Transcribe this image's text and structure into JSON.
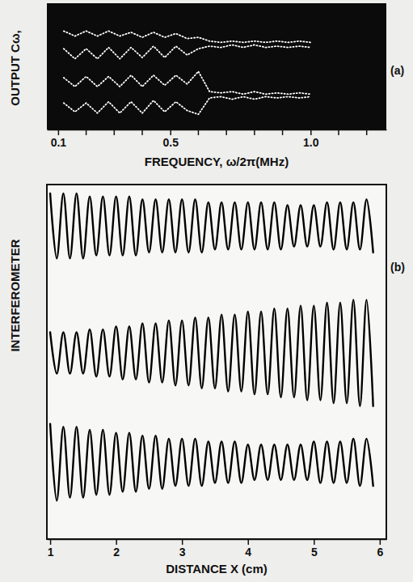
{
  "chart_data": [
    {
      "type": "line",
      "panel_label": "(a)",
      "xlabel": "FREQUENCY, ω/2π(MHz)",
      "ylabel": "OUTPUT Cω,",
      "xlim": [
        0.06,
        1.27
      ],
      "xticks": [
        0.1,
        0.5,
        {
          "value": 1,
          "label": "1.0"
        }
      ],
      "xminor_ticks": [
        0.2,
        0.3,
        0.4,
        0.6,
        0.7,
        0.8,
        0.9,
        1.1,
        1.2
      ],
      "ylim": [
        0,
        10
      ],
      "tick_labels": "x",
      "x": [
        0.12,
        0.16,
        0.2,
        0.24,
        0.28,
        0.32,
        0.36,
        0.4,
        0.44,
        0.48,
        0.52,
        0.56,
        0.6,
        0.64,
        0.68,
        0.72,
        0.76,
        0.8,
        0.84,
        0.88,
        0.92,
        0.96,
        1.0
      ],
      "series": [
        {
          "color": "#ffffff",
          "line_style": "dotted",
          "values": [
            7.8,
            7.4,
            7.8,
            7.4,
            7.8,
            7.4,
            7.7,
            7.3,
            7.7,
            7.3,
            7.6,
            7.2,
            7.3,
            7.0,
            6.9,
            7.0,
            6.9,
            7.0,
            6.9,
            7.0,
            6.9,
            7.0,
            6.9
          ]
        },
        {
          "color": "#ffffff",
          "line_style": "dotted",
          "values": [
            6.4,
            5.6,
            6.4,
            5.6,
            6.5,
            5.6,
            6.5,
            5.7,
            6.6,
            5.7,
            6.6,
            5.9,
            6.4,
            6.6,
            6.5,
            6.7,
            6.5,
            6.7,
            6.5,
            6.6,
            6.5,
            6.6,
            6.5
          ]
        },
        {
          "color": "#ffffff",
          "line_style": "dotted",
          "values": [
            4.1,
            3.4,
            4.2,
            3.4,
            4.2,
            3.4,
            4.3,
            3.4,
            4.3,
            3.5,
            4.3,
            3.6,
            4.6,
            3.0,
            2.9,
            3.0,
            2.8,
            3.0,
            2.8,
            2.9,
            2.8,
            2.9,
            2.8
          ]
        },
        {
          "color": "#ffffff",
          "line_style": "dotted",
          "values": [
            2.1,
            1.4,
            2.1,
            1.3,
            2.2,
            1.3,
            2.2,
            1.3,
            2.3,
            1.4,
            2.2,
            1.5,
            1.2,
            2.5,
            2.6,
            2.4,
            2.6,
            2.4,
            2.6,
            2.5,
            2.6,
            2.5,
            2.6
          ]
        }
      ]
    },
    {
      "type": "line",
      "panel_label": "(b)",
      "xlabel": "DISTANCE X (cm)",
      "ylabel": "INTERFEROMETER",
      "xlim": [
        0.95,
        6.1
      ],
      "xticks": [
        1,
        2,
        3,
        4,
        5,
        6
      ],
      "ylim": [
        0,
        12
      ],
      "tick_labels": "x",
      "x": [
        1.0,
        1.1,
        1.2,
        1.3,
        1.4,
        1.5,
        1.6,
        1.7,
        1.8,
        1.9,
        2.0,
        2.1,
        2.2,
        2.3,
        2.4,
        2.5,
        2.6,
        2.7,
        2.8,
        2.9,
        3.0,
        3.1,
        3.2,
        3.3,
        3.4,
        3.5,
        3.6,
        3.7,
        3.8,
        3.9,
        4.0,
        4.1,
        4.2,
        4.3,
        4.4,
        4.5,
        4.6,
        4.7,
        4.8,
        4.9,
        5.0,
        5.1,
        5.2,
        5.3,
        5.4,
        5.5,
        5.6,
        5.7,
        5.8,
        5.9
      ],
      "series": [
        {
          "color": "#000000",
          "line_style": "solid",
          "values": [
            11.7,
            9.5,
            11.7,
            9.5,
            11.7,
            9.5,
            11.6,
            9.6,
            11.6,
            9.6,
            11.6,
            9.6,
            11.6,
            9.6,
            11.5,
            9.7,
            11.5,
            9.7,
            11.5,
            9.7,
            11.5,
            9.7,
            11.5,
            9.7,
            11.4,
            9.8,
            11.4,
            9.8,
            11.4,
            9.8,
            11.4,
            9.8,
            11.4,
            9.8,
            11.4,
            9.8,
            11.3,
            9.9,
            11.3,
            9.9,
            11.3,
            9.9,
            11.4,
            9.8,
            11.4,
            9.8,
            11.4,
            9.8,
            11.5,
            9.7
          ]
        },
        {
          "color": "#000000",
          "line_style": "solid",
          "values": [
            7.0,
            5.6,
            7.0,
            5.6,
            7.0,
            5.6,
            7.1,
            5.5,
            7.1,
            5.5,
            7.2,
            5.4,
            7.2,
            5.4,
            7.3,
            5.3,
            7.3,
            5.3,
            7.4,
            5.2,
            7.4,
            5.2,
            7.5,
            5.1,
            7.5,
            5.1,
            7.6,
            5.0,
            7.6,
            5.0,
            7.7,
            4.9,
            7.7,
            4.9,
            7.8,
            4.8,
            7.8,
            4.8,
            7.9,
            4.7,
            7.9,
            4.7,
            8.0,
            4.6,
            8.0,
            4.6,
            8.1,
            4.5,
            8.1,
            4.5
          ]
        },
        {
          "color": "#000000",
          "line_style": "solid",
          "values": [
            3.9,
            1.3,
            3.8,
            1.4,
            3.8,
            1.4,
            3.7,
            1.5,
            3.7,
            1.5,
            3.6,
            1.6,
            3.6,
            1.6,
            3.5,
            1.7,
            3.5,
            1.7,
            3.4,
            1.8,
            3.4,
            1.8,
            3.4,
            1.8,
            3.3,
            1.9,
            3.3,
            1.9,
            3.3,
            1.9,
            3.2,
            2.0,
            3.2,
            2.0,
            3.2,
            2.0,
            3.2,
            2.0,
            3.2,
            2.0,
            3.3,
            1.9,
            3.3,
            1.9,
            3.3,
            1.9,
            3.4,
            1.8,
            3.4,
            1.8
          ]
        }
      ]
    }
  ]
}
